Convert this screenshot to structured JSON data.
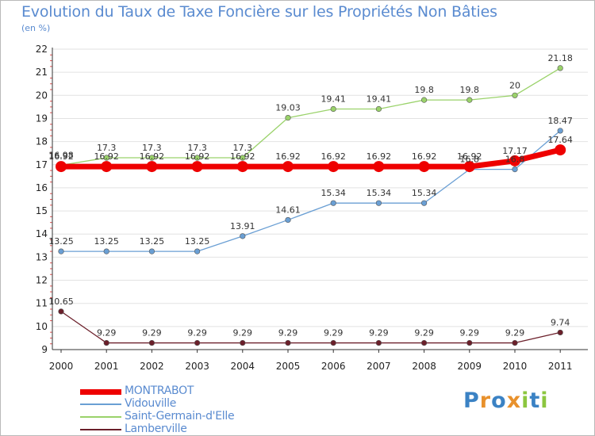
{
  "title": "Evolution du Taux de Taxe Foncière sur les Propriétés Non Bâties",
  "subtitle": "(en %)",
  "logo": {
    "text": "Proxiti",
    "letters": [
      "P",
      "r",
      "o",
      "x",
      "i",
      "t",
      "i"
    ],
    "colors": [
      "#3b82c4",
      "#e8912c",
      "#3b82c4",
      "#e8912c",
      "#8cc63f",
      "#3b82c4",
      "#8cc63f"
    ]
  },
  "chart_data": {
    "type": "line",
    "title": "Evolution du Taux de Taxe Foncière sur les Propriétés Non Bâties",
    "ylabel": "(en %)",
    "xlabel": "",
    "ylim": [
      9,
      22
    ],
    "yticks": [
      "9",
      "10",
      "11",
      "12",
      "13",
      "14",
      "15",
      "16",
      "17",
      "18",
      "19",
      "20",
      "21",
      "22"
    ],
    "categories": [
      "2000",
      "2001",
      "2002",
      "2003",
      "2004",
      "2005",
      "2006",
      "2007",
      "2008",
      "2009",
      "2010",
      "2011"
    ],
    "grid": "horizontal",
    "legend_position": "bottom-left",
    "series": [
      {
        "name": "Lamberville",
        "color": "#6b1f2a",
        "values": [
          10.65,
          9.29,
          9.29,
          9.29,
          9.29,
          9.29,
          9.29,
          9.29,
          9.29,
          9.29,
          9.29,
          9.74
        ],
        "labels": [
          "10.65",
          "9.29",
          "9.29",
          "9.29",
          "9.29",
          "9.29",
          "9.29",
          "9.29",
          "9.29",
          "9.29",
          "9.29",
          "9.74"
        ]
      },
      {
        "name": "Vidouville",
        "color": "#6a9fd4",
        "values": [
          13.25,
          13.25,
          13.25,
          13.25,
          13.91,
          14.61,
          15.34,
          15.34,
          15.34,
          16.8,
          16.8,
          18.47
        ],
        "labels": [
          "13.25",
          "13.25",
          "13.25",
          "13.25",
          "13.91",
          "14.61",
          "15.34",
          "15.34",
          "15.34",
          "16.8",
          "16.8",
          "18.47"
        ]
      },
      {
        "name": "Saint-Germain-d'Elle",
        "color": "#9ad26a",
        "values": [
          16.98,
          17.3,
          17.3,
          17.3,
          17.3,
          19.03,
          19.41,
          19.41,
          19.8,
          19.8,
          20,
          21.18
        ],
        "labels": [
          "16.98",
          "17.3",
          "17.3",
          "17.3",
          "17.3",
          "19.03",
          "19.41",
          "19.41",
          "19.8",
          "19.8",
          "20",
          "21.18"
        ]
      },
      {
        "name": "MONTRABOT",
        "color": "#ee0000",
        "values": [
          16.92,
          16.92,
          16.92,
          16.92,
          16.92,
          16.92,
          16.92,
          16.92,
          16.92,
          16.92,
          17.17,
          17.64
        ],
        "labels": [
          "16.92",
          "16.92",
          "16.92",
          "16.92",
          "16.92",
          "16.92",
          "16.92",
          "16.92",
          "16.92",
          "16.92",
          "17.17",
          "17.64"
        ]
      }
    ],
    "legend_order": [
      "MONTRABOT",
      "Vidouville",
      "Saint-Germain-d'Elle",
      "Lamberville"
    ]
  }
}
